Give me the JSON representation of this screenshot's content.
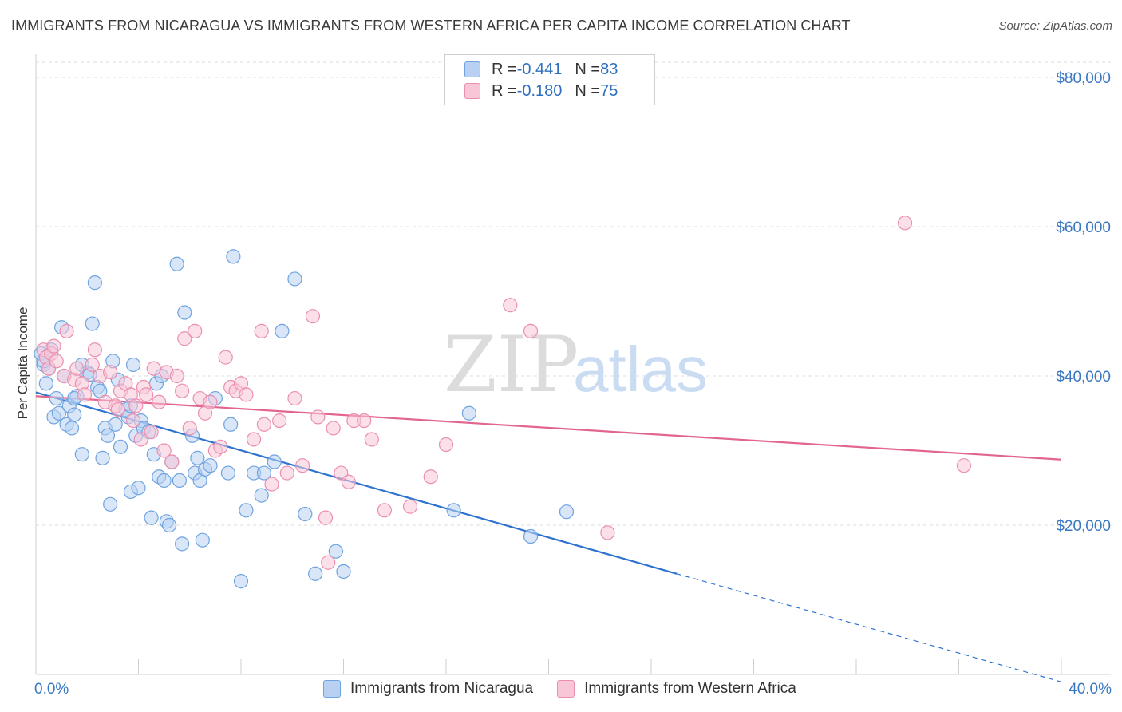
{
  "title": "IMMIGRANTS FROM NICARAGUA VS IMMIGRANTS FROM WESTERN AFRICA PER CAPITA INCOME CORRELATION CHART",
  "source": "Source: ZipAtlas.com",
  "watermark": {
    "zip": "ZIP",
    "atlas": "atlas"
  },
  "legend": {
    "rows": [
      {
        "r_label": "R = ",
        "r_value": "-0.441",
        "n_label": "N = ",
        "n_value": "83"
      },
      {
        "r_label": "R = ",
        "r_value": "-0.180",
        "n_label": "N = ",
        "n_value": "75"
      }
    ]
  },
  "chart_data": {
    "type": "scatter",
    "title": "IMMIGRANTS FROM NICARAGUA VS IMMIGRANTS FROM WESTERN AFRICA PER CAPITA INCOME CORRELATION CHART",
    "xlabel": "",
    "ylabel": "Per Capita Income",
    "xlim": [
      0,
      40
    ],
    "ylim": [
      0,
      80000
    ],
    "x_tick_labels": [
      "0.0%",
      "40.0%"
    ],
    "y_ticks": [
      20000,
      40000,
      60000,
      80000
    ],
    "y_tick_labels": [
      "$20,000",
      "$40,000",
      "$60,000",
      "$80,000"
    ],
    "grid": true,
    "legend_position": "top-center",
    "series": [
      {
        "name": "Immigrants from Nicaragua",
        "color": "#6fa3e0",
        "fill": "#b8d1f2",
        "line_color": "#2e73cf",
        "trend": {
          "x0": 0,
          "y0": 37800,
          "x1": 25,
          "y1": 13500,
          "dashed_to_x": 40,
          "dashed_to_y": -1000
        },
        "points": [
          [
            0.2,
            43000
          ],
          [
            0.3,
            41500
          ],
          [
            0.5,
            41000
          ],
          [
            0.4,
            39000
          ],
          [
            0.6,
            43500
          ],
          [
            0.8,
            37000
          ],
          [
            0.7,
            34500
          ],
          [
            0.9,
            35000
          ],
          [
            1.0,
            46500
          ],
          [
            1.1,
            40000
          ],
          [
            1.2,
            33500
          ],
          [
            1.3,
            36000
          ],
          [
            1.4,
            33000
          ],
          [
            1.5,
            34800
          ],
          [
            1.6,
            37300
          ],
          [
            1.8,
            29500
          ],
          [
            1.8,
            41500
          ],
          [
            2.0,
            40500
          ],
          [
            2.1,
            40200
          ],
          [
            2.2,
            47000
          ],
          [
            2.3,
            52500
          ],
          [
            2.4,
            38500
          ],
          [
            2.5,
            38000
          ],
          [
            2.6,
            29000
          ],
          [
            2.7,
            33000
          ],
          [
            2.8,
            32000
          ],
          [
            2.9,
            22800
          ],
          [
            3.0,
            42000
          ],
          [
            3.1,
            33500
          ],
          [
            3.2,
            39500
          ],
          [
            3.3,
            30500
          ],
          [
            3.5,
            35500
          ],
          [
            3.6,
            34500
          ],
          [
            3.7,
            24500
          ],
          [
            3.8,
            41500
          ],
          [
            3.9,
            32000
          ],
          [
            4.0,
            25000
          ],
          [
            4.1,
            34000
          ],
          [
            4.2,
            33000
          ],
          [
            4.4,
            32500
          ],
          [
            4.5,
            21000
          ],
          [
            4.6,
            29500
          ],
          [
            4.7,
            39000
          ],
          [
            4.8,
            26500
          ],
          [
            4.9,
            40000
          ],
          [
            5.0,
            26000
          ],
          [
            5.1,
            20500
          ],
          [
            5.2,
            20000
          ],
          [
            5.3,
            28500
          ],
          [
            5.5,
            55000
          ],
          [
            5.6,
            26000
          ],
          [
            5.7,
            17500
          ],
          [
            5.8,
            48500
          ],
          [
            6.1,
            32000
          ],
          [
            6.2,
            27000
          ],
          [
            6.3,
            29000
          ],
          [
            6.4,
            26000
          ],
          [
            6.5,
            18000
          ],
          [
            6.6,
            27500
          ],
          [
            6.8,
            28000
          ],
          [
            7.0,
            37000
          ],
          [
            7.5,
            27000
          ],
          [
            7.6,
            33500
          ],
          [
            7.7,
            56000
          ],
          [
            8.0,
            12500
          ],
          [
            8.2,
            22000
          ],
          [
            8.5,
            27000
          ],
          [
            8.8,
            24000
          ],
          [
            8.9,
            27000
          ],
          [
            9.3,
            28500
          ],
          [
            9.6,
            46000
          ],
          [
            10.1,
            53000
          ],
          [
            10.5,
            21500
          ],
          [
            10.9,
            13500
          ],
          [
            11.7,
            16500
          ],
          [
            12.0,
            13800
          ],
          [
            16.3,
            22000
          ],
          [
            16.9,
            35000
          ],
          [
            19.3,
            18500
          ],
          [
            20.7,
            21800
          ],
          [
            1.5,
            37000
          ],
          [
            3.7,
            36000
          ],
          [
            0.3,
            42000
          ]
        ]
      },
      {
        "name": "Immigrants from Western Africa",
        "color": "#eb8fb0",
        "fill": "#f7c6d7",
        "line_color": "#e26590",
        "trend": {
          "x0": 0,
          "y0": 37300,
          "x1": 40,
          "y1": 28800
        },
        "points": [
          [
            0.3,
            43500
          ],
          [
            0.4,
            42500
          ],
          [
            0.5,
            41000
          ],
          [
            0.6,
            43000
          ],
          [
            0.7,
            44000
          ],
          [
            0.8,
            42000
          ],
          [
            1.1,
            40000
          ],
          [
            1.2,
            46000
          ],
          [
            1.5,
            39500
          ],
          [
            1.6,
            41000
          ],
          [
            1.8,
            39000
          ],
          [
            1.9,
            37500
          ],
          [
            2.2,
            41500
          ],
          [
            2.3,
            43500
          ],
          [
            2.5,
            40000
          ],
          [
            2.7,
            36500
          ],
          [
            2.9,
            40500
          ],
          [
            3.1,
            36000
          ],
          [
            3.3,
            38000
          ],
          [
            3.5,
            39000
          ],
          [
            3.7,
            37500
          ],
          [
            3.8,
            34000
          ],
          [
            3.9,
            36000
          ],
          [
            4.1,
            31500
          ],
          [
            4.2,
            38500
          ],
          [
            4.3,
            37500
          ],
          [
            4.5,
            32500
          ],
          [
            4.6,
            41000
          ],
          [
            4.8,
            36500
          ],
          [
            5.0,
            30000
          ],
          [
            5.1,
            40500
          ],
          [
            5.3,
            28500
          ],
          [
            5.5,
            40000
          ],
          [
            5.7,
            38000
          ],
          [
            5.8,
            45000
          ],
          [
            6.0,
            33000
          ],
          [
            6.2,
            46000
          ],
          [
            6.4,
            37000
          ],
          [
            6.6,
            35000
          ],
          [
            6.8,
            36500
          ],
          [
            7.0,
            30000
          ],
          [
            7.2,
            30500
          ],
          [
            7.4,
            42500
          ],
          [
            7.6,
            38500
          ],
          [
            7.8,
            38000
          ],
          [
            8.0,
            39000
          ],
          [
            8.2,
            37500
          ],
          [
            8.5,
            31500
          ],
          [
            8.8,
            46000
          ],
          [
            8.9,
            33500
          ],
          [
            9.2,
            25500
          ],
          [
            9.5,
            34000
          ],
          [
            9.8,
            27000
          ],
          [
            10.1,
            37000
          ],
          [
            10.4,
            28000
          ],
          [
            10.8,
            48000
          ],
          [
            11.0,
            34500
          ],
          [
            11.3,
            21000
          ],
          [
            11.4,
            15000
          ],
          [
            11.6,
            33000
          ],
          [
            11.9,
            27000
          ],
          [
            12.2,
            25800
          ],
          [
            12.4,
            34000
          ],
          [
            12.8,
            34000
          ],
          [
            13.1,
            31500
          ],
          [
            13.6,
            22000
          ],
          [
            14.6,
            22500
          ],
          [
            15.4,
            26500
          ],
          [
            16.0,
            30800
          ],
          [
            18.5,
            49500
          ],
          [
            19.3,
            46000
          ],
          [
            22.3,
            19000
          ],
          [
            33.9,
            60500
          ],
          [
            36.2,
            28000
          ],
          [
            3.2,
            35500
          ]
        ]
      }
    ]
  },
  "bottom_legend": {
    "items": [
      {
        "label": "Immigrants from Nicaragua"
      },
      {
        "label": "Immigrants from Western Africa"
      }
    ]
  }
}
